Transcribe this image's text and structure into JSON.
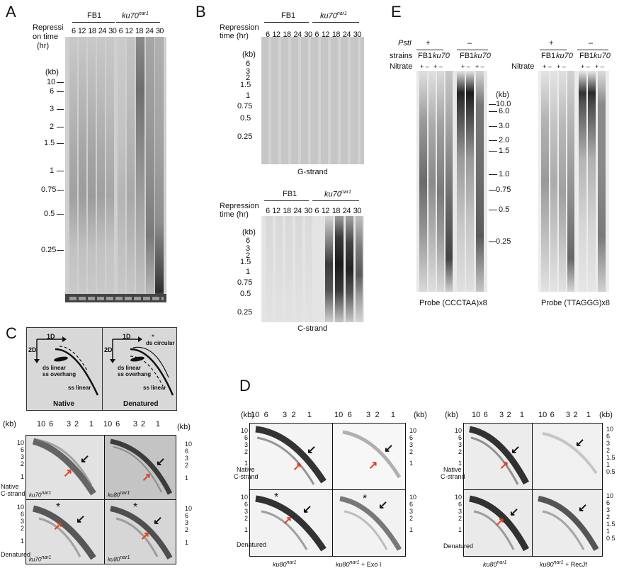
{
  "panels": {
    "A": {
      "letter": "A",
      "axis_title_line1": "Repressi",
      "axis_title_line2": "on time",
      "axis_unit": "(hr)",
      "group1": "FB1",
      "group2": "ku70",
      "group2_sup": "nar1",
      "times": [
        "6",
        "12",
        "18",
        "24",
        "30",
        "6",
        "12",
        "18",
        "24",
        "30"
      ],
      "kb_label": "(kb)",
      "markers": [
        "10",
        "6",
        "3",
        "2",
        "1.5",
        "1",
        "0.75",
        "0.5",
        "0.25"
      ]
    },
    "B": {
      "letter": "B",
      "axis_title_line1": "Repression",
      "axis_title_line2": "time (hr)",
      "group1": "FB1",
      "group2": "ku70",
      "group2_sup": "nar1",
      "times": [
        "6",
        "12",
        "18",
        "24",
        "30",
        "6",
        "12",
        "18",
        "24",
        "30"
      ],
      "kb_label": "(kb)",
      "markers": [
        "6",
        "3",
        "2",
        "1.5",
        "1",
        "0.75",
        "0.5",
        "0.25"
      ],
      "top_caption": "G-strand",
      "bottom_caption": "C-strand"
    },
    "C": {
      "letter": "C",
      "schematic": {
        "native_title": "Native",
        "denatured_title": "Denatured",
        "d1": "1D",
        "d2": "2D",
        "ds_linear": "ds linear",
        "ss_overhang": "ss overhang",
        "ss_linear": "ss linear",
        "ds_circular": "ds circular",
        "asterisk": "*"
      },
      "top_scale": [
        "10",
        "6",
        "3",
        "2",
        "1"
      ],
      "kb_label": "(kb)",
      "left_scale": [
        "10",
        "6",
        "3",
        "2",
        "1"
      ],
      "right_scale": [
        "10",
        "6",
        "3",
        "2",
        "1"
      ],
      "row1_label_line1": "Native",
      "row1_label_line2": "C-strand",
      "row2_label": "Denatured",
      "strain_ku70": "ku70",
      "strain_ku80": "ku80",
      "strain_sup": "nar1",
      "asterisk": "*"
    },
    "D": {
      "letter": "D",
      "top_scale": [
        "10",
        "6",
        "3",
        "2",
        "1"
      ],
      "kb_label": "(kb)",
      "left_scale": [
        "10",
        "6",
        "3",
        "2",
        "1"
      ],
      "right_scale_a": [
        "10",
        "6",
        "3",
        "2",
        "1"
      ],
      "right_scale_b": [
        "10",
        "6",
        "3",
        "2",
        "1.5",
        "1",
        "0.5"
      ],
      "row1_label_line1": "Native",
      "row1_label_line2": "C-strand",
      "row2_label": "Denatured",
      "strain": "ku80",
      "strain_sup": "nar1",
      "exo_suffix": " + Exo I",
      "recjf_suffix": " + RecJf",
      "asterisk": "*"
    },
    "E": {
      "letter": "E",
      "enzyme": "PstI",
      "plus": "+",
      "minus": "–",
      "strains_label": "strains",
      "nitrate_label": "Nitrate",
      "fb1": "FB1",
      "ku70": "ku70",
      "pm": "+ –",
      "kb_label": "(kb)",
      "markers": [
        "10.0",
        "6.0",
        "3.0",
        "2.0",
        "1.5",
        "1.0",
        "0.75",
        "0.5",
        "0.25"
      ],
      "probe1": "Probe (CCCTAA)x8",
      "probe2": "Probe (TTAGGG)x8"
    }
  },
  "colors": {
    "arrow_red": "#e2401b",
    "arrow_black": "#111111"
  }
}
